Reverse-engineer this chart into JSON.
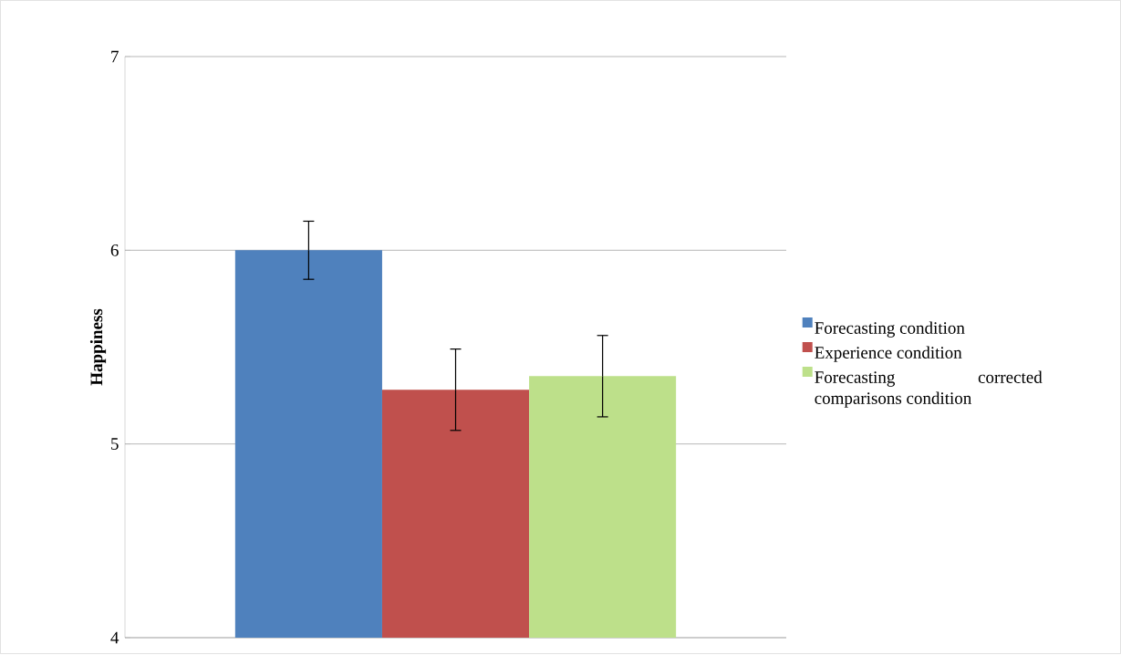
{
  "chart_data": {
    "type": "bar",
    "ylabel": "Happiness",
    "categories": [
      null
    ],
    "series": [
      {
        "name": "Forecasting condition",
        "color": "#4f81bd",
        "values": [
          6.0
        ],
        "errors": [
          0.15
        ]
      },
      {
        "name": "Experience condition",
        "color": "#c0504d",
        "values": [
          5.28
        ],
        "errors": [
          0.21
        ]
      },
      {
        "name": "Forecasting corrected comparisons condition",
        "color": "#bde08a",
        "values": [
          5.35
        ],
        "errors": [
          0.21
        ]
      }
    ],
    "ylim": [
      4,
      7
    ],
    "yticks": [
      4,
      5,
      6,
      7
    ],
    "grid": "y",
    "legend": "right"
  }
}
